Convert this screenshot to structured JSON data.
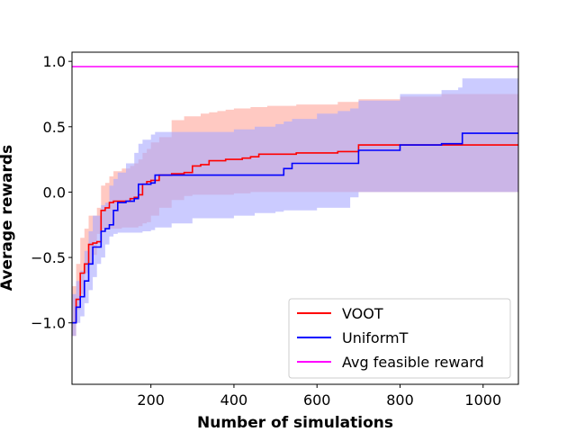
{
  "chart_data": {
    "type": "line",
    "xlabel": "Number of simulations",
    "ylabel": "Average rewards",
    "xlim": [
      10,
      1085
    ],
    "ylim": [
      -1.47,
      1.07
    ],
    "xticks": [
      200,
      400,
      600,
      800,
      1000
    ],
    "xtick_labels": [
      "200",
      "400",
      "600",
      "800",
      "1000"
    ],
    "yticks": [
      -1.0,
      -0.5,
      0.0,
      0.5,
      1.0
    ],
    "ytick_labels": [
      "−1.0",
      "−0.5",
      "0.0",
      "0.5",
      "1.0"
    ],
    "grid": false,
    "legend_position": "lower-right",
    "series": [
      {
        "name": "VOOT",
        "color": "#ff0000",
        "band_color": "#ff9c8f",
        "x": [
          10,
          20,
          30,
          40,
          50,
          60,
          70,
          80,
          90,
          100,
          110,
          130,
          150,
          160,
          170,
          180,
          190,
          200,
          220,
          250,
          280,
          300,
          320,
          340,
          360,
          380,
          400,
          420,
          440,
          460,
          480,
          500,
          550,
          600,
          650,
          700,
          800,
          900,
          1000,
          1085
        ],
        "y": [
          -1.0,
          -0.82,
          -0.62,
          -0.55,
          -0.4,
          -0.39,
          -0.38,
          -0.14,
          -0.12,
          -0.08,
          -0.07,
          -0.07,
          -0.05,
          -0.04,
          -0.02,
          0.06,
          0.08,
          0.09,
          0.13,
          0.14,
          0.15,
          0.2,
          0.21,
          0.24,
          0.24,
          0.25,
          0.25,
          0.26,
          0.27,
          0.29,
          0.29,
          0.29,
          0.3,
          0.3,
          0.31,
          0.36,
          0.36,
          0.36,
          0.36,
          0.36
        ],
        "lower": [
          -1.3,
          -1.1,
          -0.9,
          -0.78,
          -0.62,
          -0.55,
          -0.48,
          -0.32,
          -0.29,
          -0.28,
          -0.28,
          -0.28,
          -0.27,
          -0.27,
          -0.27,
          -0.26,
          -0.24,
          -0.23,
          -0.18,
          -0.12,
          -0.06,
          -0.03,
          -0.02,
          -0.02,
          -0.02,
          -0.02,
          -0.02,
          -0.01,
          -0.01,
          0.0,
          0.0,
          0.0,
          0.0,
          0.0,
          0.0,
          0.0,
          0.0,
          0.0,
          0.0,
          0.0
        ],
        "upper": [
          -0.72,
          -0.55,
          -0.35,
          -0.28,
          -0.18,
          -0.18,
          -0.12,
          0.05,
          0.07,
          0.12,
          0.16,
          0.18,
          0.2,
          0.22,
          0.25,
          0.3,
          0.33,
          0.38,
          0.42,
          0.55,
          0.58,
          0.58,
          0.6,
          0.61,
          0.62,
          0.63,
          0.64,
          0.64,
          0.65,
          0.65,
          0.66,
          0.66,
          0.67,
          0.67,
          0.69,
          0.71,
          0.73,
          0.75,
          0.75,
          0.75
        ]
      },
      {
        "name": "UniformT",
        "color": "#0000ff",
        "band_color": "#a8a8ff",
        "x": [
          10,
          20,
          30,
          40,
          50,
          60,
          70,
          80,
          90,
          100,
          110,
          120,
          140,
          160,
          170,
          180,
          200,
          210,
          250,
          300,
          400,
          450,
          500,
          520,
          540,
          600,
          650,
          680,
          700,
          800,
          900,
          940,
          950,
          1000,
          1085
        ],
        "y": [
          -1.0,
          -0.88,
          -0.8,
          -0.68,
          -0.55,
          -0.42,
          -0.42,
          -0.3,
          -0.28,
          -0.25,
          -0.14,
          -0.08,
          -0.07,
          -0.05,
          0.06,
          0.06,
          0.07,
          0.13,
          0.13,
          0.13,
          0.13,
          0.13,
          0.13,
          0.18,
          0.22,
          0.22,
          0.22,
          0.22,
          0.32,
          0.36,
          0.37,
          0.37,
          0.45,
          0.45,
          0.45
        ],
        "lower": [
          -1.2,
          -1.1,
          -1.0,
          -0.95,
          -0.85,
          -0.75,
          -0.65,
          -0.55,
          -0.5,
          -0.4,
          -0.34,
          -0.32,
          -0.31,
          -0.31,
          -0.31,
          -0.31,
          -0.3,
          -0.29,
          -0.27,
          -0.24,
          -0.2,
          -0.18,
          -0.16,
          -0.15,
          -0.14,
          -0.14,
          -0.12,
          -0.12,
          -0.04,
          0.0,
          0.0,
          0.0,
          0.0,
          0.0,
          0.0
        ],
        "upper": [
          -0.78,
          -0.68,
          -0.6,
          -0.45,
          -0.3,
          -0.18,
          -0.18,
          -0.1,
          -0.08,
          0.05,
          0.1,
          0.15,
          0.22,
          0.3,
          0.37,
          0.4,
          0.44,
          0.46,
          0.46,
          0.46,
          0.48,
          0.5,
          0.52,
          0.54,
          0.56,
          0.6,
          0.62,
          0.64,
          0.7,
          0.75,
          0.78,
          0.8,
          0.87,
          0.87,
          0.87
        ]
      },
      {
        "name": "Avg feasible reward",
        "color": "#ff00ff",
        "x": [
          10,
          1085
        ],
        "y": [
          0.96,
          0.96
        ]
      }
    ]
  }
}
